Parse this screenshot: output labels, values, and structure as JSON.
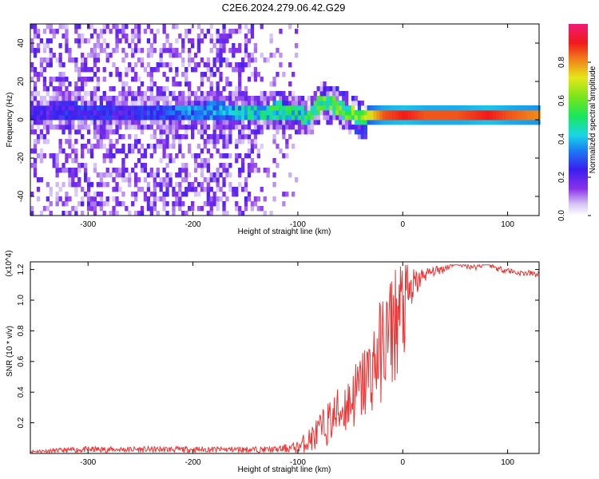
{
  "title": "C2E6.2024.279.06.42.G29",
  "chart_data": [
    {
      "type": "heatmap",
      "title": "C2E6.2024.279.06.42.G29",
      "xlabel": "Height of straight line (km)",
      "ylabel": "Frequency (Hz)",
      "xlim": [
        -355,
        130
      ],
      "ylim": [
        -50,
        50
      ],
      "x_ticks": [
        -300,
        -200,
        -100,
        0,
        100
      ],
      "x_tick_labels": [
        "-300",
        "-200",
        "-100",
        "0",
        "100"
      ],
      "y_ticks": [
        -40,
        -20,
        0,
        20,
        40
      ],
      "y_tick_labels": [
        "-40",
        "-20",
        "0",
        "20",
        "40"
      ],
      "colorbar": {
        "label": "Normalized spectral amplitude",
        "range": [
          0,
          1
        ],
        "ticks": [
          0.0,
          0.2,
          0.4,
          0.6,
          0.8
        ],
        "tick_labels": [
          "0.0",
          "0.2",
          "0.4",
          "0.6",
          "0.8"
        ],
        "colormap": "rainbow"
      },
      "ridge": {
        "x": [
          -355,
          -320,
          -290,
          -260,
          -230,
          -200,
          -180,
          -160,
          -140,
          -120,
          -100,
          -90,
          -80,
          -70,
          -60,
          -50,
          -40,
          -30,
          -20,
          0,
          20,
          50,
          80,
          100,
          130
        ],
        "y": [
          3,
          4,
          2,
          3,
          2,
          3,
          4,
          3,
          2,
          4,
          2,
          0,
          8,
          7,
          4,
          2,
          -1,
          1,
          2,
          2,
          2,
          2,
          2,
          2,
          2
        ],
        "amplitude": [
          0.2,
          0.25,
          0.25,
          0.25,
          0.3,
          0.35,
          0.35,
          0.4,
          0.45,
          0.5,
          0.45,
          0.5,
          0.55,
          0.55,
          0.55,
          0.6,
          0.6,
          0.75,
          0.85,
          0.9,
          0.85,
          0.85,
          0.9,
          0.85,
          0.8
        ]
      },
      "grid": false
    },
    {
      "type": "line",
      "xlabel": "Height of straight line (km)",
      "ylabel": "SNR (10 * v/v)",
      "y_multiplier": "(x10^4)",
      "xlim": [
        -355,
        130
      ],
      "ylim": [
        0,
        1.25
      ],
      "x_ticks": [
        -300,
        -200,
        -100,
        0,
        100
      ],
      "x_tick_labels": [
        "-300",
        "-200",
        "-100",
        "0",
        "100"
      ],
      "y_ticks": [
        0.2,
        0.4,
        0.6,
        0.8,
        1.0,
        1.2
      ],
      "y_tick_labels": [
        "0.2",
        "0.4",
        "0.6",
        "0.8",
        "1.0",
        "1.2"
      ],
      "series": [
        {
          "color": "#ee3333",
          "x": [
            -355,
            -300,
            -250,
            -200,
            -150,
            -120,
            -100,
            -90,
            -80,
            -70,
            -60,
            -50,
            -40,
            -30,
            -20,
            -10,
            0,
            10,
            20,
            30,
            40,
            50,
            60,
            70,
            80,
            90,
            100,
            110,
            120,
            130
          ],
          "y": [
            0.01,
            0.02,
            0.02,
            0.02,
            0.02,
            0.02,
            0.03,
            0.06,
            0.1,
            0.16,
            0.22,
            0.28,
            0.35,
            0.45,
            0.58,
            0.7,
            0.82,
            1.05,
            1.15,
            1.18,
            1.2,
            1.24,
            1.22,
            1.21,
            1.24,
            1.2,
            1.19,
            1.17,
            1.17,
            1.16
          ],
          "spread": [
            0.01,
            0.02,
            0.02,
            0.02,
            0.02,
            0.02,
            0.04,
            0.08,
            0.12,
            0.15,
            0.18,
            0.2,
            0.25,
            0.3,
            0.35,
            0.4,
            0.4,
            0.12,
            0.05,
            0.03,
            0.03,
            0.02,
            0.02,
            0.02,
            0.02,
            0.02,
            0.02,
            0.02,
            0.02,
            0.02
          ]
        }
      ],
      "grid": false
    }
  ]
}
